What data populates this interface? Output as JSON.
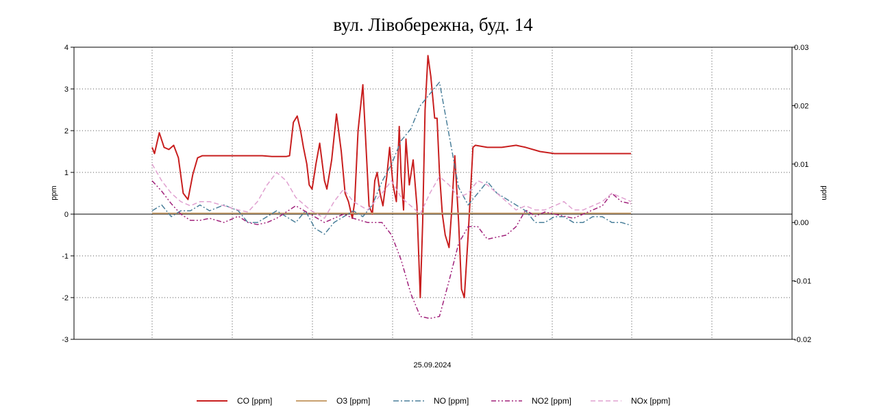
{
  "chart_data": {
    "type": "line",
    "title": "вул. Лівобережна, буд. 14",
    "xlabel": "25.09.2024",
    "ylabel_left": "ppm",
    "ylabel_right": "ppm",
    "ylim_left": [
      -3,
      4
    ],
    "yticks_left": [
      "4",
      "3",
      "2",
      "1",
      "0",
      "-1",
      "-2",
      "-3"
    ],
    "ylim_right": [
      -0.02,
      0.03
    ],
    "yticks_right": [
      "0.03",
      "0.02",
      "0.01",
      "0.00",
      "-0.01",
      "-0.02"
    ],
    "xlim": [
      0,
      100
    ],
    "grid": true,
    "legend_position": "bottom",
    "series": [
      {
        "name": "CO [ppm]",
        "axis": "left",
        "color": "#c81e1e",
        "dash": "solid",
        "x": [
          0,
          0.5,
          1.5,
          2.5,
          3.5,
          4.5,
          5.5,
          6.5,
          7.5,
          8.5,
          9.5,
          10.5,
          11.5,
          12.5,
          14,
          17,
          20,
          23,
          25,
          26,
          27,
          28,
          28.7,
          29.5,
          30.3,
          31,
          31.6,
          32.3,
          32.8,
          33.4,
          34.2,
          35,
          36,
          36.5,
          37.5,
          38.5,
          39.5,
          40.3,
          41,
          41.8,
          42.3,
          43,
          44,
          44.8,
          45.3,
          46,
          46.5,
          47,
          47.6,
          48.2,
          49,
          49.6,
          50.3,
          51,
          51.6,
          52,
          52.5,
          53,
          53.7,
          54.5,
          55.3,
          56,
          56.5,
          57,
          57.6,
          58.2,
          59,
          59.5,
          60,
          60.6,
          61.2,
          62,
          62.5,
          63.2,
          64,
          64.6,
          65.2,
          66,
          67,
          67.5,
          70,
          73,
          76,
          78,
          81,
          84,
          88,
          92,
          96,
          100
        ],
        "y": [
          1.6,
          1.45,
          1.95,
          1.6,
          1.55,
          1.65,
          1.35,
          0.5,
          0.35,
          0.95,
          1.35,
          1.4,
          1.4,
          1.4,
          1.4,
          1.4,
          1.4,
          1.4,
          1.38,
          1.38,
          1.38,
          1.38,
          1.4,
          2.2,
          2.35,
          2.0,
          1.6,
          1.2,
          0.7,
          0.6,
          1.2,
          1.7,
          0.8,
          0.6,
          1.3,
          2.4,
          1.5,
          0.5,
          0.3,
          -0.1,
          0.3,
          2.0,
          3.1,
          1.3,
          0.2,
          0.0,
          0.8,
          1.0,
          0.5,
          0.2,
          0.9,
          1.6,
          0.7,
          0.3,
          2.1,
          0.9,
          0.1,
          1.8,
          0.7,
          1.3,
          0.2,
          -2.0,
          -0.2,
          2.5,
          3.8,
          3.3,
          2.3,
          2.3,
          1.0,
          0.0,
          -0.5,
          -0.8,
          0.0,
          1.4,
          -0.2,
          -1.8,
          -2.0,
          -0.5,
          1.6,
          1.65,
          1.6,
          1.6,
          1.65,
          1.6,
          1.5,
          1.45,
          1.45,
          1.45,
          1.45,
          1.45
        ]
      },
      {
        "name": "O3 [ppm]",
        "axis": "left",
        "color": "#c8a06e",
        "dash": "solid",
        "x": [
          0,
          100
        ],
        "y": [
          0.02,
          0.02
        ]
      },
      {
        "name": "NO [ppm]",
        "axis": "right",
        "color": "#4a7f9a",
        "dash": "dashdot",
        "x": [
          0,
          2,
          4,
          6,
          8,
          10,
          12,
          15,
          18,
          20,
          22,
          24,
          26,
          28,
          30,
          32,
          34,
          36,
          38,
          40,
          42,
          44,
          46,
          48,
          50,
          52,
          54,
          56,
          58,
          60,
          62,
          64,
          66,
          68,
          70,
          72,
          74,
          76,
          78,
          80,
          82,
          84,
          86,
          88,
          90,
          92,
          94,
          96,
          98,
          100
        ],
        "y": [
          0.002,
          0.003,
          0.001,
          0.002,
          0.002,
          0.003,
          0.002,
          0.003,
          0.002,
          0.0,
          0.0,
          0.001,
          0.002,
          0.001,
          0.0,
          0.002,
          -0.001,
          -0.002,
          0.0,
          0.001,
          0.002,
          0.001,
          0.003,
          0.007,
          0.01,
          0.014,
          0.016,
          0.02,
          0.022,
          0.024,
          0.015,
          0.006,
          0.003,
          0.005,
          0.007,
          0.005,
          0.004,
          0.003,
          0.002,
          0.0,
          0.0,
          0.001,
          0.001,
          0.0,
          0.0,
          0.001,
          0.001,
          0.0,
          0.0,
          -0.0005
        ]
      },
      {
        "name": "NO2 [ppm]",
        "axis": "left",
        "color": "#a0207a",
        "dash": "dashdotdot",
        "x": [
          0,
          2,
          4,
          6,
          8,
          10,
          12,
          15,
          18,
          20,
          22,
          24,
          26,
          28,
          30,
          33,
          36,
          38,
          40,
          42,
          45,
          48,
          50,
          52,
          54,
          56,
          58,
          60,
          62,
          64,
          66,
          68,
          70,
          72,
          74,
          76,
          78,
          80,
          82,
          84,
          86,
          88,
          90,
          92,
          94,
          96,
          98,
          100
        ],
        "y": [
          0.8,
          0.55,
          0.25,
          0.0,
          -0.15,
          -0.15,
          -0.1,
          -0.2,
          -0.05,
          -0.2,
          -0.25,
          -0.2,
          -0.1,
          0.05,
          0.2,
          0.0,
          -0.2,
          -0.1,
          0.0,
          -0.1,
          -0.2,
          -0.2,
          -0.5,
          -1.1,
          -1.9,
          -2.45,
          -2.5,
          -2.45,
          -1.6,
          -0.7,
          -0.3,
          -0.3,
          -0.6,
          -0.55,
          -0.5,
          -0.3,
          0.1,
          -0.05,
          0.05,
          0.0,
          -0.05,
          -0.1,
          0.0,
          0.1,
          0.2,
          0.5,
          0.3,
          0.25
        ]
      },
      {
        "name": "NOx [ppm]",
        "axis": "left",
        "color": "#e0a0d0",
        "dash": "dash",
        "x": [
          0,
          2,
          4,
          6,
          8,
          10,
          12,
          15,
          18,
          20,
          22,
          24,
          26,
          28,
          30,
          33,
          36,
          38,
          40,
          42,
          45,
          48,
          50,
          52,
          54,
          56,
          58,
          60,
          62,
          64,
          66,
          68,
          70,
          72,
          74,
          76,
          78,
          80,
          82,
          84,
          86,
          88,
          90,
          92,
          94,
          96,
          98,
          100
        ],
        "y": [
          1.2,
          0.8,
          0.5,
          0.3,
          0.2,
          0.3,
          0.3,
          0.2,
          0.1,
          0.05,
          0.3,
          0.7,
          1.0,
          0.8,
          0.4,
          0.1,
          -0.1,
          0.3,
          0.6,
          0.3,
          0.1,
          0.5,
          0.8,
          0.4,
          0.2,
          0.0,
          0.5,
          0.9,
          0.7,
          0.4,
          0.5,
          0.8,
          0.7,
          0.5,
          0.3,
          0.1,
          0.2,
          0.1,
          0.1,
          0.2,
          0.3,
          0.1,
          0.1,
          0.2,
          0.3,
          0.5,
          0.4,
          0.3
        ]
      }
    ]
  }
}
